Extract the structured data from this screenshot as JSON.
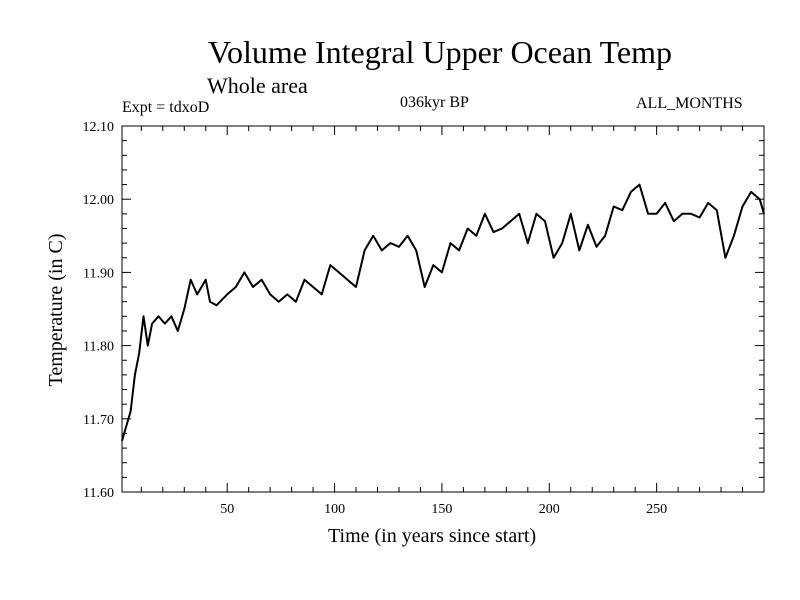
{
  "header": {
    "title": "Volume Integral Upper Ocean Temp",
    "subtitle": "Whole area",
    "experiment": "Expt = tdxoD",
    "period": "036kyr BP",
    "months": "ALL_MONTHS"
  },
  "chart_data": {
    "type": "line",
    "xlabel": "Time (in years since start)",
    "ylabel": "Temperature (in C)",
    "xlim": [
      1,
      300
    ],
    "ylim": [
      11.6,
      12.1
    ],
    "x_ticks": [
      50,
      100,
      150,
      200,
      250
    ],
    "y_ticks": [
      "11.60",
      "11.70",
      "11.80",
      "11.90",
      "12.00",
      "12.10"
    ],
    "grid": false,
    "series": [
      {
        "color": "#000000",
        "x": [
          1,
          3,
          5,
          7,
          9,
          11,
          13,
          15,
          18,
          21,
          24,
          27,
          30,
          33,
          36,
          40,
          42,
          45,
          50,
          54,
          58,
          62,
          66,
          70,
          74,
          78,
          82,
          86,
          90,
          94,
          98,
          102,
          106,
          110,
          114,
          118,
          122,
          126,
          130,
          134,
          138,
          142,
          146,
          150,
          154,
          158,
          162,
          166,
          170,
          174,
          178,
          182,
          186,
          190,
          194,
          198,
          202,
          206,
          210,
          214,
          218,
          222,
          226,
          230,
          234,
          238,
          242,
          246,
          250,
          254,
          258,
          262,
          266,
          270,
          274,
          278,
          282,
          286,
          290,
          294,
          298,
          300
        ],
        "values": [
          11.67,
          11.69,
          11.71,
          11.76,
          11.79,
          11.84,
          11.8,
          11.83,
          11.84,
          11.83,
          11.84,
          11.82,
          11.85,
          11.89,
          11.87,
          11.89,
          11.86,
          11.855,
          11.87,
          11.88,
          11.9,
          11.88,
          11.89,
          11.87,
          11.86,
          11.87,
          11.86,
          11.89,
          11.88,
          11.87,
          11.91,
          11.9,
          11.89,
          11.88,
          11.93,
          11.95,
          11.93,
          11.94,
          11.935,
          11.95,
          11.93,
          11.88,
          11.91,
          11.9,
          11.94,
          11.93,
          11.96,
          11.95,
          11.98,
          11.955,
          11.96,
          11.97,
          11.98,
          11.94,
          11.98,
          11.97,
          11.92,
          11.94,
          11.98,
          11.93,
          11.965,
          11.935,
          11.95,
          11.99,
          11.985,
          12.01,
          12.02,
          11.98,
          11.98,
          11.995,
          11.97,
          11.98,
          11.98,
          11.975,
          11.995,
          11.985,
          11.92,
          11.95,
          11.99,
          12.01,
          12.0,
          11.98
        ]
      }
    ]
  }
}
